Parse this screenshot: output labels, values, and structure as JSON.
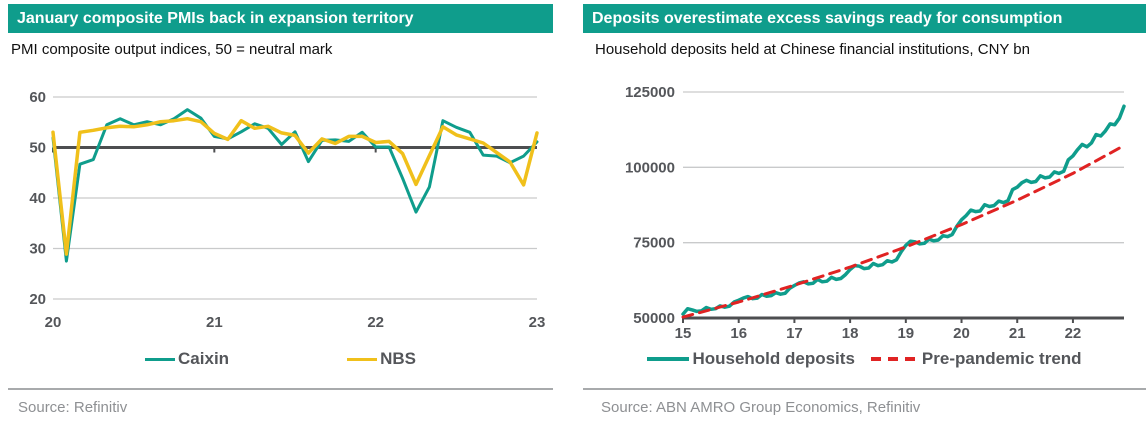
{
  "colors": {
    "teal": "#0f9d8c",
    "yellow": "#f0c01b",
    "red": "#e02323",
    "axis_dark": "#4d4e50",
    "grid": "#c9cacb",
    "tick_label": "#54565a",
    "source_text": "#8e9093",
    "title_bar_bg": "#0f9d8c",
    "title_text": "#ffffff"
  },
  "left_panel": {
    "title": "January composite PMIs back in expansion territory",
    "subtitle": "PMI composite output indices, 50 = neutral mark",
    "legend": [
      {
        "label": "Caixin",
        "color": "#0f9d8c",
        "style": "solid"
      },
      {
        "label": "NBS",
        "color": "#f0c01b",
        "style": "solid"
      }
    ],
    "source": "Source: Refinitiv"
  },
  "right_panel": {
    "title": "Deposits overestimate excess savings ready for consumption",
    "subtitle": "Household deposits held at Chinese financial institutions, CNY bn",
    "legend": [
      {
        "label": "Household deposits",
        "color": "#0f9d8c",
        "style": "solid"
      },
      {
        "label": "Pre-pandemic trend",
        "color": "#e02323",
        "style": "dashed"
      }
    ],
    "source": "Source: ABN AMRO Group Economics, Refinitiv"
  },
  "chart_data": [
    {
      "type": "line",
      "title": "January composite PMIs back in expansion territory",
      "subtitle": "PMI composite output indices, 50 = neutral mark",
      "xlim": [
        2020.0,
        2023.0
      ],
      "ylim": [
        20,
        60
      ],
      "yticks": [
        20,
        30,
        40,
        50,
        60
      ],
      "xticks": [
        2020,
        2021,
        2022,
        2023
      ],
      "xtick_labels": [
        "20",
        "21",
        "22",
        "23"
      ],
      "baseline": 50,
      "grid": true,
      "legend_position": "bottom",
      "series": [
        {
          "name": "Caixin",
          "color": "#0f9d8c",
          "dash": null,
          "width": 3,
          "x_start": 2020.0,
          "x_step_years": 0.0833333,
          "values": [
            51.9,
            27.5,
            46.7,
            47.6,
            54.5,
            55.7,
            54.5,
            55.1,
            54.5,
            55.7,
            57.5,
            55.8,
            52.2,
            51.7,
            53.1,
            54.7,
            53.8,
            50.6,
            53.1,
            47.2,
            51.4,
            51.5,
            51.2,
            53.0,
            50.1,
            50.1,
            43.9,
            37.2,
            42.2,
            55.3,
            54.0,
            53.0,
            48.5,
            48.3,
            47.0,
            48.3,
            51.1
          ]
        },
        {
          "name": "NBS",
          "color": "#f0c01b",
          "dash": null,
          "width": 3.5,
          "x_start": 2020.0,
          "x_step_years": 0.0833333,
          "values": [
            53.0,
            28.9,
            53.0,
            53.4,
            53.9,
            54.2,
            54.1,
            54.5,
            55.1,
            55.3,
            55.7,
            55.1,
            52.8,
            51.6,
            55.3,
            53.8,
            54.2,
            52.9,
            52.4,
            48.9,
            51.7,
            50.8,
            52.2,
            52.2,
            51.0,
            51.2,
            48.8,
            42.7,
            48.4,
            54.1,
            52.5,
            51.7,
            50.9,
            49.0,
            47.1,
            42.6,
            52.9
          ]
        }
      ]
    },
    {
      "type": "line",
      "title": "Deposits overestimate excess savings ready for consumption",
      "subtitle": "Household deposits held at Chinese financial institutions, CNY bn",
      "xlim": [
        2015.0,
        2022.9167
      ],
      "ylim": [
        50000,
        125000
      ],
      "yticks": [
        50000,
        75000,
        100000,
        125000
      ],
      "xticks": [
        2015,
        2016,
        2017,
        2018,
        2019,
        2020,
        2021,
        2022
      ],
      "xtick_labels": [
        "15",
        "16",
        "17",
        "18",
        "19",
        "20",
        "21",
        "22"
      ],
      "baseline": 50000,
      "grid": true,
      "legend_position": "bottom",
      "series": [
        {
          "name": "Household deposits",
          "color": "#0f9d8c",
          "dash": null,
          "width": 3.5,
          "x_start": 2015.0,
          "x_step_years": 0.0833333,
          "values": [
            51300,
            53100,
            52700,
            52200,
            52400,
            53500,
            52900,
            53100,
            54000,
            53600,
            53900,
            55300,
            55900,
            56600,
            57100,
            56400,
            56600,
            57800,
            57200,
            57400,
            58400,
            57900,
            58200,
            59900,
            60800,
            61600,
            62000,
            61300,
            61500,
            62800,
            62000,
            62200,
            63500,
            62800,
            63100,
            64400,
            66100,
            67400,
            67200,
            66400,
            66600,
            68100,
            67400,
            67700,
            69000,
            68600,
            69300,
            72000,
            74100,
            75500,
            75300,
            74600,
            74800,
            76200,
            75600,
            75900,
            77300,
            77000,
            77700,
            80500,
            82600,
            84000,
            85800,
            85300,
            85500,
            87600,
            87000,
            87300,
            88800,
            88300,
            88900,
            92600,
            93400,
            94900,
            95700,
            95000,
            95300,
            97200,
            96500,
            96800,
            98500,
            98000,
            98700,
            102500,
            103800,
            105900,
            107600,
            106800,
            108100,
            110900,
            110400,
            112100,
            114400,
            114100,
            116300,
            120300
          ]
        },
        {
          "name": "Pre-pandemic trend",
          "color": "#e02323",
          "dash": "10 7",
          "width": 3,
          "points": [
            [
              2015.0,
              50300
            ],
            [
              2016.0,
              55300
            ],
            [
              2017.0,
              60900
            ],
            [
              2018.0,
              66900
            ],
            [
              2019.0,
              73600
            ],
            [
              2020.0,
              81000
            ],
            [
              2021.0,
              89100
            ],
            [
              2022.0,
              98000
            ],
            [
              2022.9167,
              107200
            ]
          ]
        }
      ]
    }
  ]
}
